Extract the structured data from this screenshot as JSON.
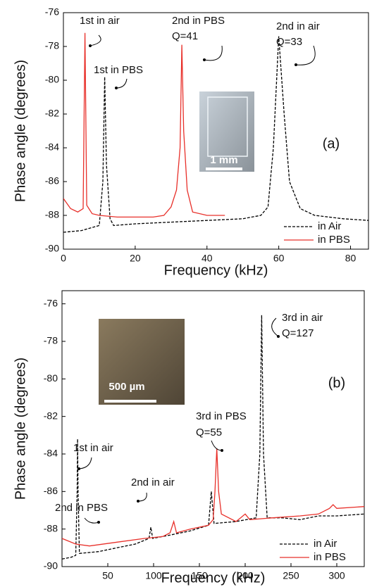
{
  "chart_data": [
    {
      "type": "line",
      "panel_label": "(a)",
      "x_label": "Frequency (kHz)",
      "y_label": "Phase angle (degrees)",
      "xlim": [
        0,
        85
      ],
      "ylim": [
        -90,
        -76
      ],
      "xticks": [
        0,
        20,
        40,
        60,
        80
      ],
      "yticks": [
        -90,
        -88,
        -86,
        -84,
        -82,
        -80,
        -78,
        -76
      ],
      "legend": "lower right",
      "inset_label": "1 mm",
      "series": [
        {
          "name": "in Air",
          "color": "#000000",
          "style": "dashed",
          "x": [
            0,
            5,
            10,
            11,
            11.5,
            12,
            13,
            14,
            20,
            30,
            40,
            50,
            55,
            57,
            58.5,
            60,
            61.5,
            63,
            66,
            70,
            78,
            85
          ],
          "values": [
            -89,
            -88.9,
            -88.6,
            -86,
            -79.8,
            -85,
            -88.2,
            -88.6,
            -88.5,
            -88.4,
            -88.3,
            -88.2,
            -88,
            -87.5,
            -84,
            -77.4,
            -82,
            -86,
            -87.6,
            -88,
            -88.2,
            -88.3
          ]
        },
        {
          "name": "in PBS",
          "color": "#e8302a",
          "style": "solid",
          "x": [
            0,
            2,
            4,
            5.5,
            6,
            6.5,
            8,
            10,
            15,
            20,
            25,
            28,
            30,
            31.5,
            32.5,
            33,
            33.5,
            34.5,
            36,
            40,
            45
          ],
          "values": [
            -87,
            -87.6,
            -87.8,
            -87.6,
            -77.2,
            -87.4,
            -87.9,
            -88,
            -88.1,
            -88.1,
            -88.1,
            -88,
            -87.5,
            -86.5,
            -84,
            -77.9,
            -83,
            -86.5,
            -87.8,
            -88,
            -88
          ]
        }
      ],
      "annotations": [
        [
          "1st in air"
        ],
        [
          "1st in PBS"
        ],
        [
          "2nd in PBS",
          "Q=41"
        ],
        [
          "2nd in air",
          "Q=33"
        ]
      ]
    },
    {
      "type": "line",
      "panel_label": "(b)",
      "x_label": "Frequency (kHz)",
      "y_label": "Phase angle (degrees)",
      "xlim": [
        0,
        330
      ],
      "ylim": [
        -90,
        -75.3
      ],
      "xticks": [
        50,
        100,
        150,
        200,
        250,
        300
      ],
      "yticks": [
        -90,
        -88,
        -86,
        -84,
        -82,
        -80,
        -78,
        -76
      ],
      "legend": "lower right",
      "inset_label": "500 µm",
      "series": [
        {
          "name": "in Air",
          "color": "#000000",
          "style": "dashed",
          "x": [
            0,
            10,
            15,
            16.5,
            17,
            17.5,
            19,
            40,
            60,
            80,
            95,
            97,
            99,
            120,
            140,
            160,
            163,
            166,
            190,
            212,
            216,
            218,
            220,
            224,
            240,
            260,
            280,
            300,
            330
          ],
          "values": [
            -89.6,
            -89.5,
            -89.4,
            -86,
            -83.2,
            -86,
            -89.3,
            -89.2,
            -89,
            -88.8,
            -88.5,
            -87.9,
            -88.5,
            -88.3,
            -88.1,
            -87.8,
            -86,
            -87.7,
            -87.6,
            -87.4,
            -84,
            -76.6,
            -84,
            -87.4,
            -87.4,
            -87.5,
            -87.3,
            -87.3,
            -87.2
          ]
        },
        {
          "name": "in PBS",
          "color": "#e8302a",
          "style": "solid",
          "x": [
            0,
            15,
            30,
            60,
            90,
            110,
            118,
            122,
            125,
            140,
            160,
            165,
            167,
            169,
            171,
            174,
            190,
            195,
            200,
            205,
            230,
            260,
            280,
            292,
            296,
            300,
            330
          ],
          "values": [
            -88.5,
            -88.8,
            -88.9,
            -88.7,
            -88.5,
            -88.4,
            -88.2,
            -87.6,
            -88.2,
            -88,
            -87.8,
            -87.5,
            -86,
            -83.7,
            -86,
            -87.2,
            -87.6,
            -87.4,
            -87.2,
            -87.5,
            -87.4,
            -87.3,
            -87.2,
            -86.9,
            -86.7,
            -86.9,
            -86.8
          ]
        }
      ],
      "annotations": [
        [
          "3rd in air",
          "Q=127"
        ],
        [
          "3rd in PBS",
          "Q=55"
        ],
        [
          "1st in air"
        ],
        [
          "2nd in air"
        ],
        [
          "2nd in PBS"
        ]
      ]
    }
  ]
}
